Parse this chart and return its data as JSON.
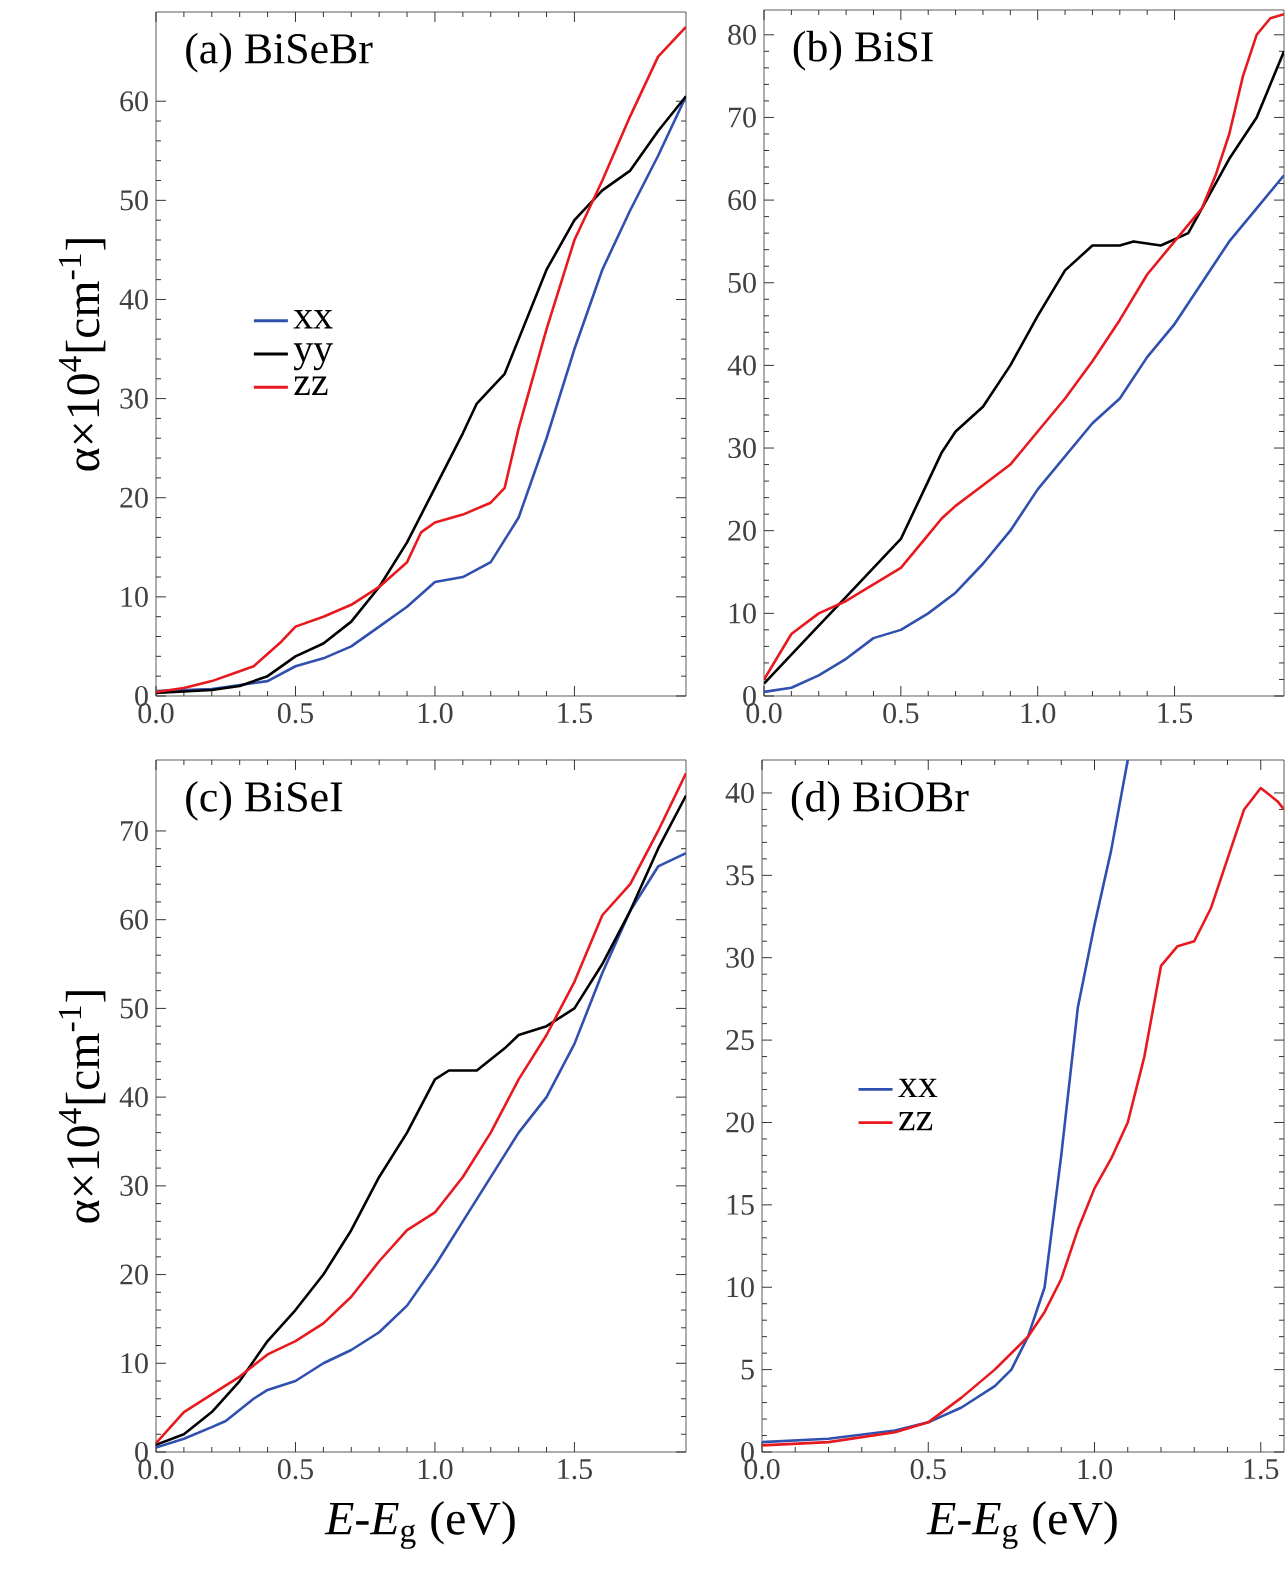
{
  "chart_data": [
    {
      "type": "line",
      "title": "(a) BiSeBr",
      "ylabel": "α×10$^{4}$[cm$^{-1}$]",
      "xlim": [
        0,
        1.9
      ],
      "ylim": [
        0,
        69
      ],
      "xticks": [
        {
          "value": 0,
          "label": "0.0"
        },
        {
          "value": 0.5,
          "label": "0.5"
        },
        {
          "value": 1,
          "label": "1.0"
        },
        {
          "value": 1.5,
          "label": "1.5"
        }
      ],
      "yticks": [
        0,
        10,
        20,
        30,
        40,
        50,
        60
      ],
      "legend": "center left",
      "series": [
        {
          "name": "xx",
          "color": "#3050b0",
          "x": [
            0,
            0.2,
            0.4,
            0.5,
            0.6,
            0.7,
            0.8,
            0.9,
            1.0,
            1.1,
            1.2,
            1.3,
            1.4,
            1.5,
            1.6,
            1.7,
            1.8,
            1.9
          ],
          "values": [
            0.5,
            0.7,
            1.5,
            3,
            3.8,
            5,
            7,
            9,
            11.5,
            12,
            13.5,
            18,
            26,
            35,
            43,
            49,
            54.5,
            60.5
          ]
        },
        {
          "name": "yy",
          "color": "#000000",
          "x": [
            0,
            0.2,
            0.3,
            0.4,
            0.5,
            0.6,
            0.7,
            0.8,
            0.9,
            1.0,
            1.1,
            1.15,
            1.2,
            1.25,
            1.3,
            1.4,
            1.5,
            1.6,
            1.7,
            1.8,
            1.9
          ],
          "values": [
            0.3,
            0.6,
            1,
            2,
            4,
            5.3,
            7.5,
            11,
            15.5,
            21,
            26.5,
            29.5,
            31,
            32.5,
            36,
            43,
            48,
            51,
            53,
            57,
            60.5
          ]
        },
        {
          "name": "zz",
          "color": "#e8191e",
          "x": [
            0,
            0.1,
            0.2,
            0.3,
            0.35,
            0.45,
            0.5,
            0.6,
            0.7,
            0.8,
            0.9,
            0.95,
            1.0,
            1.1,
            1.2,
            1.25,
            1.3,
            1.4,
            1.5,
            1.6,
            1.7,
            1.8,
            1.9
          ],
          "values": [
            0.4,
            0.8,
            1.5,
            2.5,
            3,
            5.5,
            7,
            8,
            9.2,
            11,
            13.5,
            16.5,
            17.5,
            18.3,
            19.5,
            21,
            27,
            37,
            46,
            52,
            58.5,
            64.5,
            67.5
          ]
        }
      ]
    },
    {
      "type": "line",
      "title": "(b) BiSI",
      "xlim": [
        0,
        1.9
      ],
      "ylim": [
        0,
        83
      ],
      "xticks": [
        {
          "value": 0,
          "label": "0.0"
        },
        {
          "value": 0.5,
          "label": "0.5"
        },
        {
          "value": 1,
          "label": "1.0"
        },
        {
          "value": 1.5,
          "label": "1.5"
        }
      ],
      "yticks": [
        0,
        10,
        20,
        30,
        40,
        50,
        60,
        70,
        80
      ],
      "series": [
        {
          "color": "#3050b0",
          "x": [
            0,
            0.1,
            0.2,
            0.3,
            0.4,
            0.5,
            0.6,
            0.7,
            0.8,
            0.9,
            1.0,
            1.1,
            1.2,
            1.3,
            1.4,
            1.5,
            1.6,
            1.7,
            1.8,
            1.9
          ],
          "values": [
            0.5,
            1,
            2.5,
            4.5,
            7,
            8,
            10,
            12.5,
            16,
            20,
            25,
            29,
            33,
            36,
            41,
            45,
            50,
            55,
            59,
            63
          ]
        },
        {
          "color": "#000000",
          "x": [
            0,
            0.1,
            0.2,
            0.3,
            0.4,
            0.5,
            0.6,
            0.65,
            0.7,
            0.8,
            0.9,
            1.0,
            1.1,
            1.2,
            1.3,
            1.35,
            1.45,
            1.55,
            1.6,
            1.7,
            1.8,
            1.9
          ],
          "values": [
            1.5,
            5,
            8.5,
            12,
            15.5,
            19,
            26,
            29.5,
            32,
            35,
            40,
            46,
            51.5,
            54.5,
            54.5,
            55,
            54.5,
            56,
            59,
            65,
            70,
            78
          ]
        },
        {
          "color": "#e8191e",
          "x": [
            0,
            0.1,
            0.2,
            0.3,
            0.4,
            0.5,
            0.6,
            0.65,
            0.7,
            0.8,
            0.9,
            1.0,
            1.1,
            1.2,
            1.3,
            1.4,
            1.5,
            1.6,
            1.65,
            1.7,
            1.75,
            1.8,
            1.85,
            1.9
          ],
          "values": [
            2,
            7.5,
            10,
            11.5,
            13.5,
            15.5,
            19.5,
            21.5,
            23,
            25.5,
            28,
            32,
            36,
            40.5,
            45.5,
            51,
            55,
            59,
            63,
            68,
            75,
            80,
            82,
            82.5
          ]
        }
      ]
    },
    {
      "type": "line",
      "title": "(c) BiSeI",
      "ylabel": "α×10$^{4}$[cm$^{-1}$]",
      "xlabel": "*E*-*E*$_{g}$ (eV)",
      "xlim": [
        0,
        1.9
      ],
      "ylim": [
        0,
        78
      ],
      "xticks": [
        {
          "value": 0,
          "label": "0.0"
        },
        {
          "value": 0.5,
          "label": "0.5"
        },
        {
          "value": 1,
          "label": "1.0"
        },
        {
          "value": 1.5,
          "label": "1.5"
        }
      ],
      "yticks": [
        0,
        10,
        20,
        30,
        40,
        50,
        60,
        70
      ],
      "series": [
        {
          "color": "#3050b0",
          "x": [
            0,
            0.1,
            0.2,
            0.25,
            0.35,
            0.4,
            0.5,
            0.6,
            0.7,
            0.8,
            0.9,
            1.0,
            1.1,
            1.2,
            1.3,
            1.4,
            1.5,
            1.6,
            1.7,
            1.8,
            1.9
          ],
          "values": [
            0.5,
            1.5,
            2.8,
            3.5,
            6,
            7,
            8,
            10,
            11.5,
            13.5,
            16.5,
            21,
            26,
            31,
            36,
            40,
            46,
            54,
            61,
            66,
            67.5
          ]
        },
        {
          "color": "#000000",
          "x": [
            0,
            0.1,
            0.2,
            0.3,
            0.4,
            0.5,
            0.6,
            0.7,
            0.8,
            0.9,
            1.0,
            1.05,
            1.15,
            1.25,
            1.3,
            1.4,
            1.5,
            1.6,
            1.7,
            1.8,
            1.9
          ],
          "values": [
            0.8,
            2,
            4.5,
            8,
            12.5,
            16,
            20,
            25,
            31,
            36,
            42,
            43,
            43,
            45.5,
            47,
            48,
            50,
            55,
            61,
            68,
            74
          ]
        },
        {
          "color": "#e8191e",
          "x": [
            0,
            0.1,
            0.2,
            0.3,
            0.4,
            0.5,
            0.6,
            0.7,
            0.8,
            0.9,
            1.0,
            1.1,
            1.2,
            1.3,
            1.4,
            1.5,
            1.6,
            1.7,
            1.8,
            1.9
          ],
          "values": [
            1,
            4.5,
            6.5,
            8.5,
            11,
            12.5,
            14.5,
            17.5,
            21.5,
            25,
            27,
            31,
            36,
            42,
            47,
            53,
            60.5,
            64,
            70,
            76.5
          ]
        }
      ]
    },
    {
      "type": "line",
      "title": "(d) BiOBr",
      "xlabel": "*E*-*E*$_{g}$ (eV)",
      "xlim": [
        0,
        1.57
      ],
      "ylim": [
        0,
        42
      ],
      "xticks": [
        {
          "value": 0,
          "label": "0.0"
        },
        {
          "value": 0.5,
          "label": "0.5"
        },
        {
          "value": 1,
          "label": "1.0"
        },
        {
          "value": 1.5,
          "label": "1.5"
        }
      ],
      "yticks": [
        0,
        5,
        10,
        15,
        20,
        25,
        30,
        35,
        40
      ],
      "legend": "center left",
      "series": [
        {
          "name": "xx",
          "color": "#3050b0",
          "x": [
            0,
            0.2,
            0.4,
            0.5,
            0.6,
            0.7,
            0.75,
            0.8,
            0.85,
            0.9,
            0.95,
            1.0,
            1.05,
            1.1
          ],
          "values": [
            0.6,
            0.8,
            1.3,
            1.8,
            2.7,
            4,
            5,
            7,
            10,
            18,
            27,
            32,
            36.5,
            42
          ]
        },
        {
          "name": "zz",
          "color": "#e8191e",
          "x": [
            0,
            0.2,
            0.4,
            0.5,
            0.6,
            0.7,
            0.8,
            0.85,
            0.9,
            0.95,
            1.0,
            1.05,
            1.1,
            1.15,
            1.2,
            1.25,
            1.3,
            1.35,
            1.4,
            1.45,
            1.5,
            1.55,
            1.57
          ],
          "values": [
            0.4,
            0.6,
            1.2,
            1.8,
            3.3,
            5,
            7,
            8.5,
            10.5,
            13.5,
            16,
            17.8,
            20,
            24,
            29.5,
            30.7,
            31,
            33,
            36,
            39,
            40.3,
            39.5,
            39
          ]
        }
      ]
    }
  ]
}
